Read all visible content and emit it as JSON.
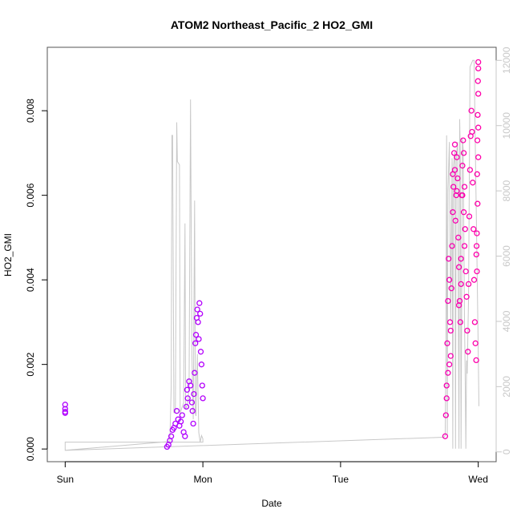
{
  "chart_data": {
    "type": "scatter",
    "title": "ATOM2 Northeast_Pacific_2 HO2_GMI",
    "xlabel": "Date",
    "ylabel": "HO2_GMI",
    "x_ticks": [
      "Sun",
      "Mon",
      "Tue",
      "Wed"
    ],
    "x_tick_days": [
      0,
      1,
      2,
      3
    ],
    "xlim_days": [
      -0.13,
      3.13
    ],
    "ylim": [
      -0.0003,
      0.0095
    ],
    "y_ticks": [
      0.0,
      0.002,
      0.004,
      0.006,
      0.008
    ],
    "y_tick_labels": [
      "0.000",
      "0.002",
      "0.004",
      "0.006",
      "0.008"
    ],
    "y2lim": [
      -300,
      12400
    ],
    "y2_ticks": [
      0,
      2000,
      4000,
      6000,
      8000,
      10000,
      12000
    ],
    "y2_tick_labels": [
      "0",
      "2000",
      "4000",
      "6000",
      "8000",
      "10000",
      "12000"
    ],
    "grid": false,
    "colors": {
      "start": "#b000ff",
      "end": "#ff00aa",
      "altitude_line": "#c8c8c8",
      "axis": "#000000",
      "secondary_axis": "#c8c8c8"
    },
    "series": [
      {
        "values_desc": "HO2_GMI (mol/mol)",
        "points": [
          [
            0.0,
            0.00085
          ],
          [
            0.0,
            0.00095
          ],
          [
            0.0,
            0.00105
          ],
          [
            0.0,
            0.00088
          ],
          [
            0.74,
            5e-05
          ],
          [
            0.75,
            0.0001
          ],
          [
            0.76,
            0.0002
          ],
          [
            0.77,
            0.0003
          ],
          [
            0.78,
            0.00045
          ],
          [
            0.79,
            0.0005
          ],
          [
            0.8,
            0.0006
          ],
          [
            0.81,
            0.0009
          ],
          [
            0.82,
            0.0007
          ],
          [
            0.83,
            0.00055
          ],
          [
            0.84,
            0.00065
          ],
          [
            0.85,
            0.0008
          ],
          [
            0.86,
            0.0004
          ],
          [
            0.87,
            0.0003
          ],
          [
            0.88,
            0.001
          ],
          [
            0.885,
            0.0014
          ],
          [
            0.89,
            0.0012
          ],
          [
            0.9,
            0.0016
          ],
          [
            0.91,
            0.0015
          ],
          [
            0.92,
            0.0011
          ],
          [
            0.925,
            0.0009
          ],
          [
            0.93,
            0.0006
          ],
          [
            0.935,
            0.0013
          ],
          [
            0.94,
            0.0018
          ],
          [
            0.945,
            0.0025
          ],
          [
            0.95,
            0.0027
          ],
          [
            0.955,
            0.0031
          ],
          [
            0.96,
            0.0033
          ],
          [
            0.965,
            0.003
          ],
          [
            0.97,
            0.0026
          ],
          [
            0.975,
            0.00345
          ],
          [
            0.98,
            0.0032
          ],
          [
            0.985,
            0.0023
          ],
          [
            0.99,
            0.002
          ],
          [
            0.995,
            0.0015
          ],
          [
            1.0,
            0.0012
          ],
          [
            2.76,
            0.0003
          ],
          [
            2.765,
            0.0008
          ],
          [
            2.77,
            0.0015
          ],
          [
            2.775,
            0.0025
          ],
          [
            2.78,
            0.0035
          ],
          [
            2.785,
            0.0045
          ],
          [
            2.79,
            0.004
          ],
          [
            2.795,
            0.003
          ],
          [
            2.8,
            0.0022
          ],
          [
            2.805,
            0.0038
          ],
          [
            2.81,
            0.0048
          ],
          [
            2.815,
            0.0056
          ],
          [
            2.82,
            0.0062
          ],
          [
            2.825,
            0.007
          ],
          [
            2.83,
            0.0066
          ],
          [
            2.835,
            0.0054
          ],
          [
            2.84,
            0.006
          ],
          [
            2.845,
            0.0069
          ],
          [
            2.85,
            0.0064
          ],
          [
            2.855,
            0.005
          ],
          [
            2.86,
            0.0043
          ],
          [
            2.865,
            0.0035
          ],
          [
            2.87,
            0.003
          ],
          [
            2.875,
            0.0045
          ],
          [
            2.88,
            0.006
          ],
          [
            2.885,
            0.0067
          ],
          [
            2.89,
            0.0073
          ],
          [
            2.895,
            0.007
          ],
          [
            2.9,
            0.0062
          ],
          [
            2.905,
            0.0052
          ],
          [
            2.91,
            0.0042
          ],
          [
            2.915,
            0.0036
          ],
          [
            2.92,
            0.0028
          ],
          [
            2.925,
            0.0023
          ],
          [
            2.93,
            0.0039
          ],
          [
            2.935,
            0.0055
          ],
          [
            2.94,
            0.0066
          ],
          [
            2.945,
            0.0074
          ],
          [
            2.95,
            0.008
          ],
          [
            2.955,
            0.0075
          ],
          [
            2.96,
            0.0063
          ],
          [
            2.965,
            0.0052
          ],
          [
            2.97,
            0.004
          ],
          [
            2.975,
            0.003
          ],
          [
            2.98,
            0.0025
          ],
          [
            2.985,
            0.0021
          ],
          [
            2.99,
            0.0042
          ],
          [
            2.995,
            0.0058
          ],
          [
            3.0,
            0.0069
          ],
          [
            3.0,
            0.0076
          ],
          [
            3.0,
            0.0084
          ],
          [
            3.0,
            0.009
          ],
          [
            3.0,
            0.00915
          ],
          [
            2.998,
            0.0087
          ],
          [
            2.996,
            0.0079
          ],
          [
            2.994,
            0.0073
          ],
          [
            2.992,
            0.0065
          ],
          [
            2.99,
            0.0051
          ],
          [
            2.988,
            0.0048
          ],
          [
            2.986,
            0.0046
          ],
          [
            2.9,
            0.0048
          ],
          [
            2.895,
            0.0056
          ],
          [
            2.885,
            0.006
          ],
          [
            2.875,
            0.0039
          ],
          [
            2.86,
            0.0034
          ],
          [
            2.845,
            0.0061
          ],
          [
            2.83,
            0.0072
          ],
          [
            2.815,
            0.0065
          ],
          [
            2.8,
            0.0028
          ],
          [
            2.79,
            0.002
          ],
          [
            2.78,
            0.0018
          ],
          [
            2.77,
            0.0012
          ]
        ]
      },
      {
        "values_desc": "Altitude (secondary axis)",
        "line": [
          [
            0.0,
            300
          ],
          [
            0.0,
            50
          ],
          [
            0.76,
            320
          ],
          [
            0.77,
            2000
          ],
          [
            0.775,
            9700
          ],
          [
            0.78,
            9700
          ],
          [
            0.79,
            1200
          ],
          [
            0.8,
            1200
          ],
          [
            0.81,
            10100
          ],
          [
            0.815,
            8900
          ],
          [
            0.83,
            8800
          ],
          [
            0.835,
            1200
          ],
          [
            0.86,
            1500
          ],
          [
            0.87,
            7000
          ],
          [
            0.875,
            1300
          ],
          [
            0.89,
            1500
          ],
          [
            0.9,
            2000
          ],
          [
            0.91,
            10800
          ],
          [
            0.92,
            3000
          ],
          [
            0.93,
            1000
          ],
          [
            0.94,
            7700
          ],
          [
            0.945,
            1200
          ],
          [
            0.95,
            1100
          ],
          [
            0.96,
            3000
          ],
          [
            0.97,
            600
          ],
          [
            0.98,
            300
          ],
          [
            0.99,
            500
          ],
          [
            1.0,
            400
          ],
          [
            1.0,
            300
          ],
          [
            0.0,
            300
          ],
          [
            0.0,
            50
          ],
          [
            2.75,
            450
          ],
          [
            2.76,
            500
          ],
          [
            2.765,
            3000
          ],
          [
            2.77,
            9700
          ],
          [
            2.775,
            500
          ],
          [
            2.78,
            8000
          ],
          [
            2.79,
            9500
          ],
          [
            2.8,
            4000
          ],
          [
            2.81,
            9000
          ],
          [
            2.815,
            100
          ],
          [
            2.82,
            8800
          ],
          [
            2.83,
            9200
          ],
          [
            2.835,
            100
          ],
          [
            2.84,
            9000
          ],
          [
            2.85,
            9500
          ],
          [
            2.86,
            100
          ],
          [
            2.865,
            10200
          ],
          [
            2.87,
            9000
          ],
          [
            2.875,
            100
          ],
          [
            2.885,
            9600
          ],
          [
            2.89,
            9300
          ],
          [
            2.9,
            4000
          ],
          [
            2.905,
            2500
          ],
          [
            2.91,
            100
          ],
          [
            2.915,
            2800
          ],
          [
            2.92,
            2400
          ],
          [
            2.93,
            4800
          ],
          [
            2.94,
            11800
          ],
          [
            2.95,
            11900
          ],
          [
            2.96,
            12000
          ],
          [
            2.97,
            12000
          ],
          [
            2.98,
            9000
          ],
          [
            2.99,
            6000
          ],
          [
            3.0,
            3000
          ],
          [
            3.005,
            1400
          ]
        ]
      }
    ]
  }
}
